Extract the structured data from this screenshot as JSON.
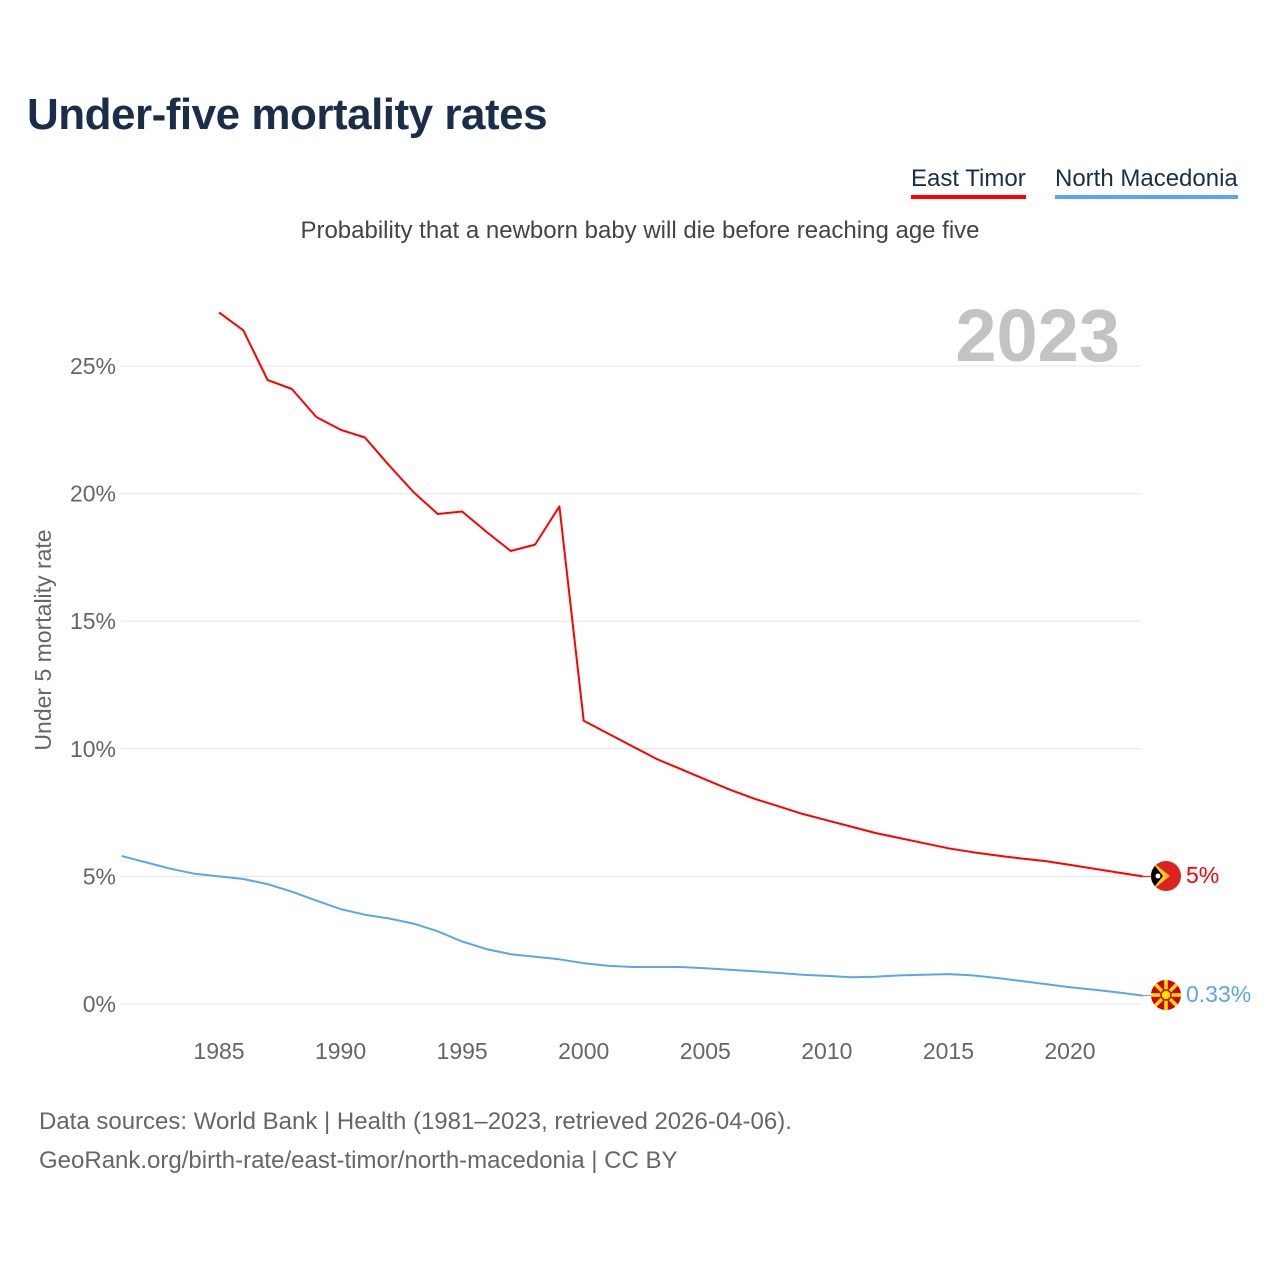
{
  "title": "Under-five mortality rates",
  "subtitle": "Probability that a newborn baby will die before reaching age five",
  "footer": {
    "line1": "Data sources: World Bank | Health (1981–2023, retrieved 2026-04-06).",
    "line2": "GeoRank.org/birth-rate/east-timor/north-macedonia | CC BY"
  },
  "chart_data": {
    "type": "line",
    "title": "Under-five mortality rates",
    "ylabel": "Under 5 mortality rate",
    "xlabel": "",
    "year_label": "2023",
    "xlim": [
      1981,
      2023
    ],
    "ylim": [
      0,
      27
    ],
    "x_ticks": [
      1985,
      1990,
      1995,
      2000,
      2005,
      2010,
      2015,
      2020
    ],
    "y_ticks": [
      0,
      5,
      10,
      15,
      20,
      25
    ],
    "y_tick_labels": [
      "0%",
      "5%",
      "10%",
      "15%",
      "20%",
      "25%"
    ],
    "grid": true,
    "legend_position": "top-right",
    "series": [
      {
        "name": "East Timor",
        "color": "#ff0000",
        "end_label": "5%",
        "flag": "east-timor-flag",
        "x": [
          1985,
          1986,
          1987,
          1988,
          1989,
          1990,
          1991,
          1992,
          1993,
          1994,
          1995,
          1996,
          1997,
          1998,
          1999,
          2000,
          2001,
          2002,
          2003,
          2004,
          2005,
          2006,
          2007,
          2008,
          2009,
          2010,
          2011,
          2012,
          2013,
          2014,
          2015,
          2016,
          2017,
          2018,
          2019,
          2020,
          2021,
          2022,
          2023
        ],
        "values": [
          27.1,
          26.4,
          24.45,
          24.1,
          23.0,
          22.5,
          22.2,
          21.1,
          20.06,
          19.2,
          19.3,
          18.5,
          17.75,
          18.0,
          19.5,
          11.1,
          10.6,
          10.1,
          9.6,
          9.2,
          8.8,
          8.4,
          8.05,
          7.75,
          7.45,
          7.2,
          6.95,
          6.7,
          6.5,
          6.3,
          6.1,
          5.95,
          5.82,
          5.7,
          5.6,
          5.45,
          5.3,
          5.15,
          5.0
        ]
      },
      {
        "name": "North Macedonia",
        "color": "#5aa6ee",
        "end_label": "0.33%",
        "flag": "north-macedonia-flag",
        "x": [
          1981,
          1982,
          1983,
          1984,
          1985,
          1986,
          1987,
          1988,
          1989,
          1990,
          1991,
          1992,
          1993,
          1994,
          1995,
          1996,
          1997,
          1998,
          1999,
          2000,
          2001,
          2002,
          2003,
          2004,
          2005,
          2006,
          2007,
          2008,
          2009,
          2010,
          2011,
          2012,
          2013,
          2014,
          2015,
          2016,
          2017,
          2018,
          2019,
          2020,
          2021,
          2022,
          2023
        ],
        "values": [
          5.8,
          5.55,
          5.3,
          5.1,
          5.0,
          4.9,
          4.7,
          4.4,
          4.05,
          3.72,
          3.5,
          3.35,
          3.15,
          2.85,
          2.45,
          2.15,
          1.95,
          1.85,
          1.75,
          1.6,
          1.5,
          1.45,
          1.45,
          1.45,
          1.4,
          1.34,
          1.28,
          1.22,
          1.15,
          1.1,
          1.05,
          1.07,
          1.12,
          1.15,
          1.17,
          1.12,
          1.02,
          0.9,
          0.78,
          0.66,
          0.56,
          0.45,
          0.33
        ]
      }
    ]
  }
}
